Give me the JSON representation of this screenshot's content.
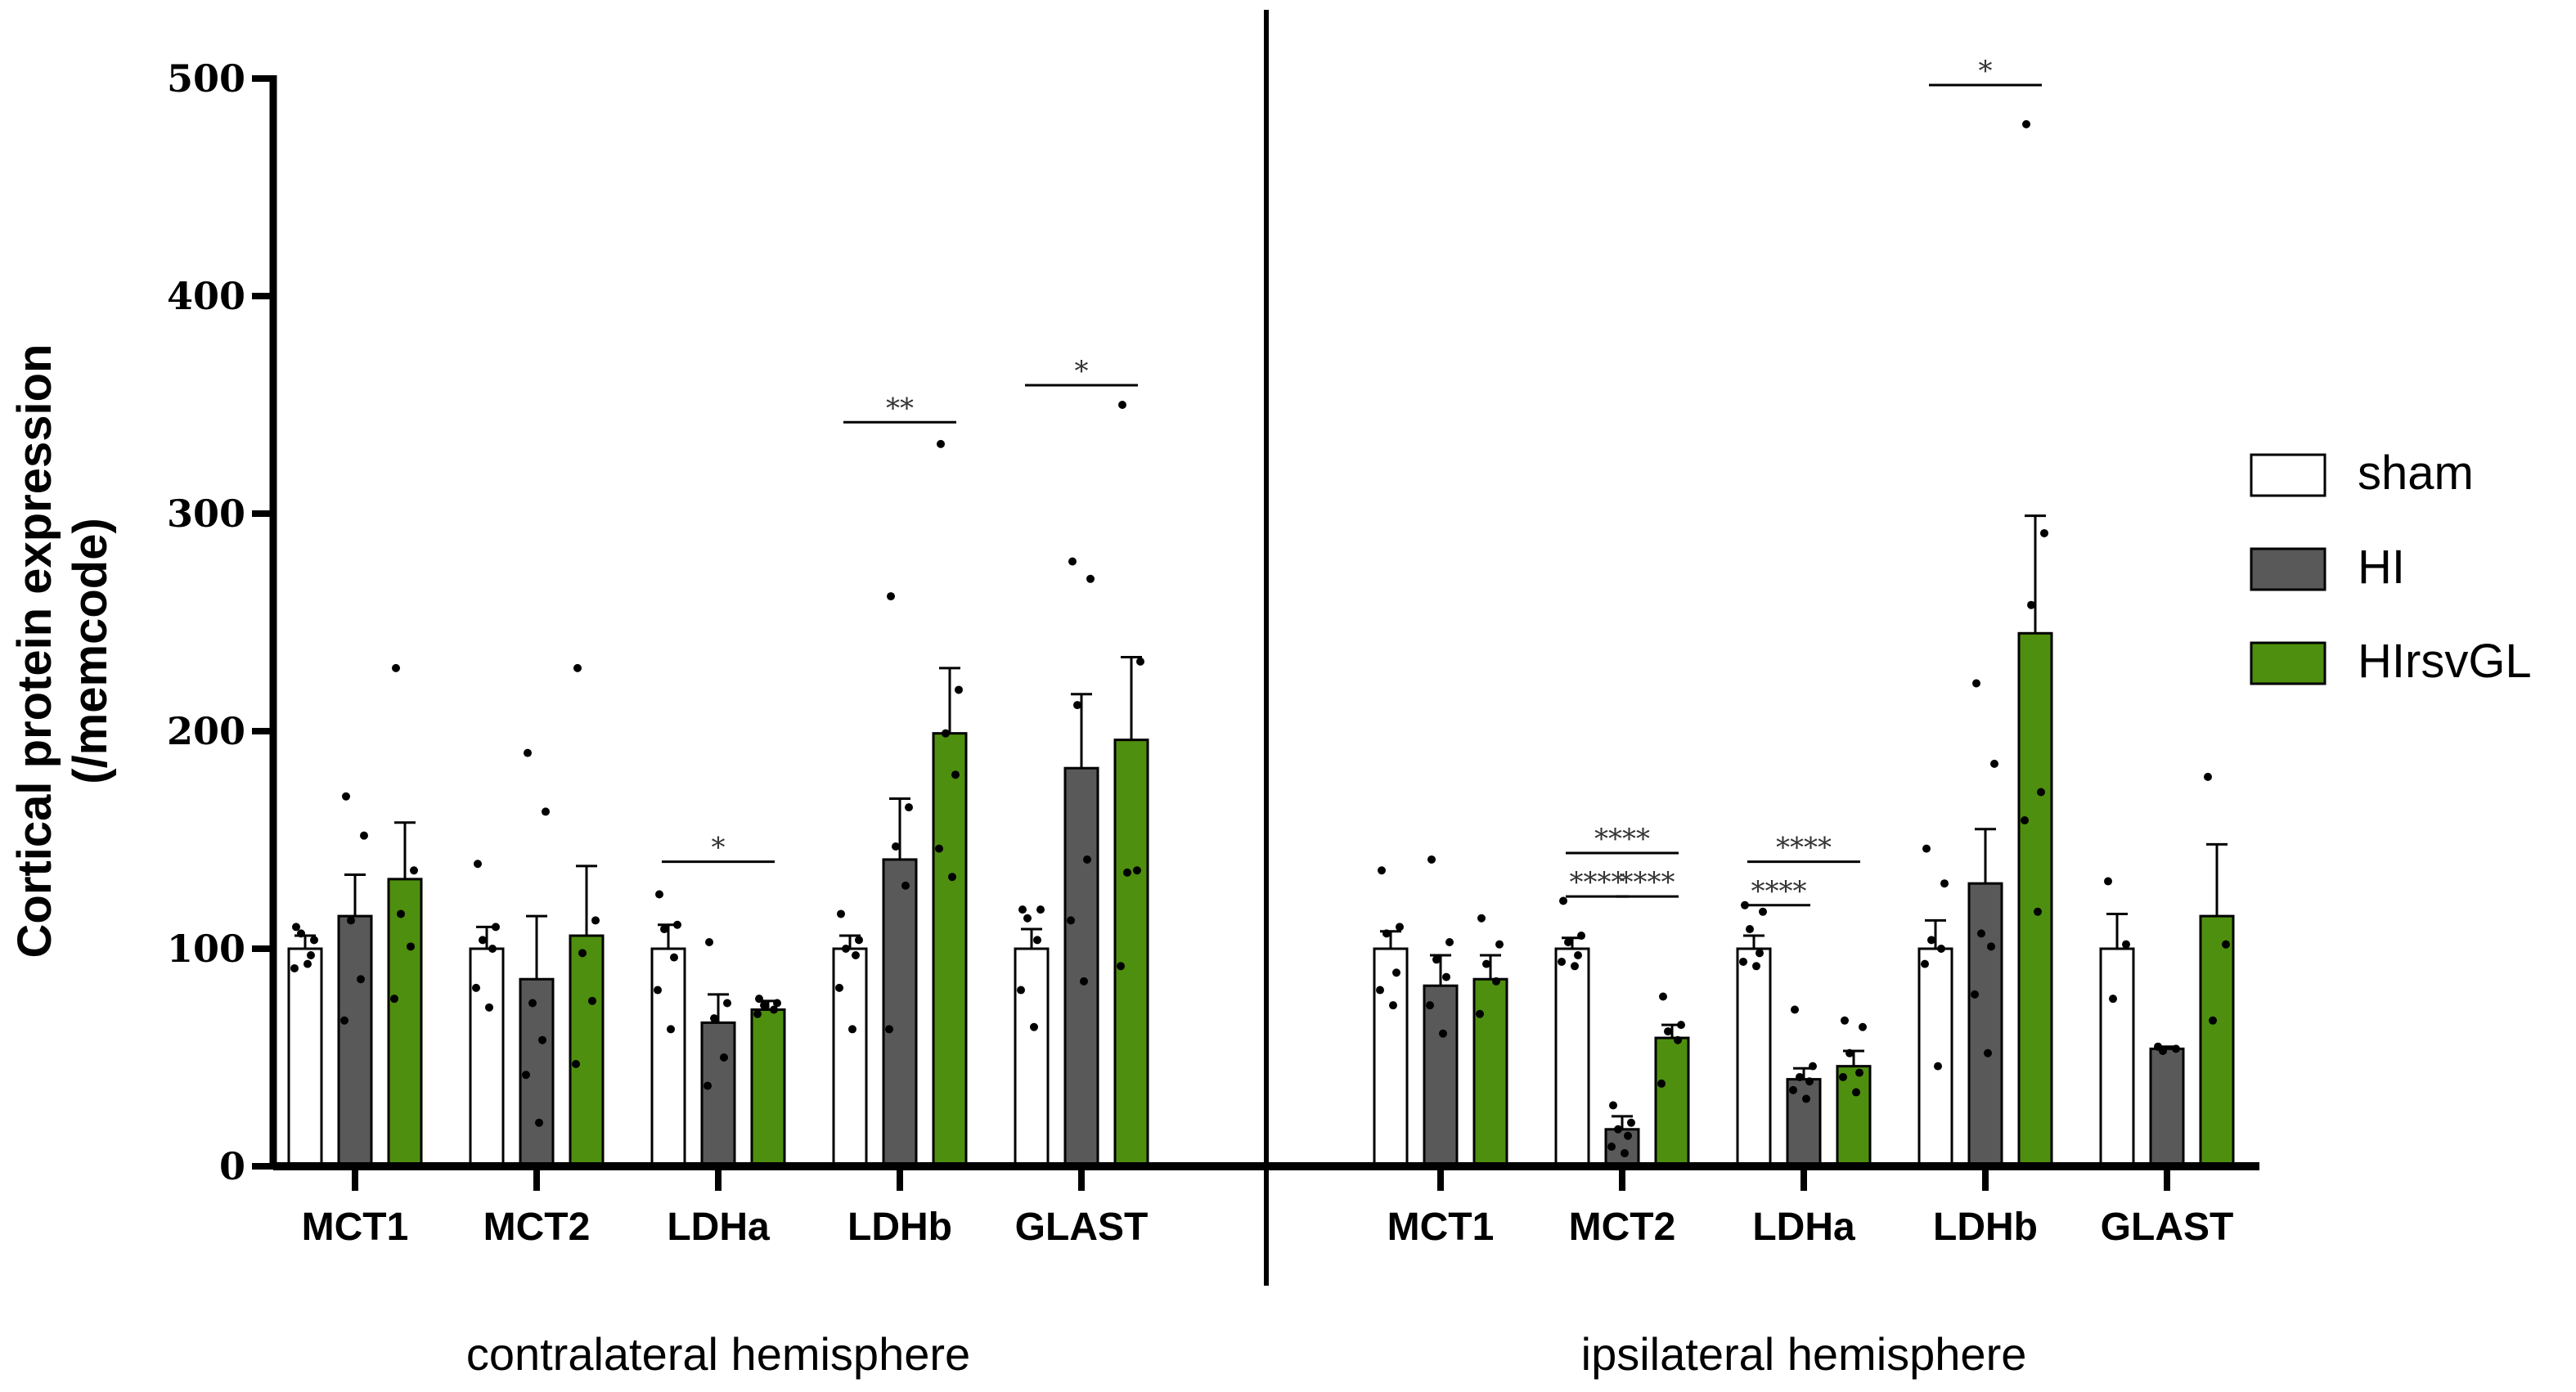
{
  "chart_data": {
    "type": "bar",
    "ylabel_line1": "Cortical protein expression",
    "ylabel_line2": "(/memcode)",
    "ylim": [
      0,
      500
    ],
    "yticks": [
      "0",
      "100",
      "200",
      "300",
      "400",
      "500"
    ],
    "legend": [
      {
        "name": "sham",
        "color": "#ffffff"
      },
      {
        "name": "HI",
        "color": "#595959"
      },
      {
        "name": "HIrsvGL",
        "color": "#4e8f0f"
      }
    ],
    "panels": [
      {
        "label": "contralateral hemisphere",
        "categories": [
          "MCT1",
          "MCT2",
          "LDHa",
          "LDHb",
          "GLAST"
        ],
        "series": [
          {
            "name": "sham",
            "values": [
              100,
              100,
              100,
              100,
              100
            ],
            "errors": [
              6,
              10,
              11,
              6,
              9
            ]
          },
          {
            "name": "HI",
            "values": [
              115,
              86,
              66,
              141,
              183
            ],
            "errors": [
              19,
              29,
              13,
              28,
              34
            ]
          },
          {
            "name": "HIrsvGL",
            "values": [
              132,
              106,
              72,
              199,
              196
            ],
            "errors": [
              26,
              32,
              4,
              30,
              38
            ]
          }
        ],
        "points": [
          [
            [
              110,
              104,
              107,
              97,
              91,
              93
            ],
            [
              170,
              152,
              113,
              86,
              67
            ],
            [
              229,
              136,
              116,
              101,
              77
            ]
          ],
          [
            [
              139,
              110,
              104,
              100,
              82,
              73
            ],
            [
              190,
              163,
              75,
              58,
              42,
              20
            ],
            [
              229,
              113,
              98,
              76,
              47
            ]
          ],
          [
            [
              125,
              111,
              109,
              96,
              81,
              63
            ],
            [
              103,
              75,
              68,
              50,
              37
            ],
            [
              77,
              75,
              74,
              72,
              70
            ]
          ],
          [
            [
              116,
              104,
              100,
              97,
              82,
              63
            ],
            [
              262,
              165,
              147,
              129,
              63
            ],
            [
              332,
              219,
              199,
              180,
              146,
              133
            ]
          ],
          [
            [
              118,
              118,
              114,
              104,
              81,
              64
            ],
            [
              278,
              270,
              212,
              141,
              113,
              85
            ],
            [
              350,
              232,
              135,
              136,
              92
            ]
          ]
        ],
        "significance": [
          {
            "label": "*",
            "category": "LDHa",
            "from": "sham",
            "to": "HIrsvGL",
            "y": 140
          },
          {
            "label": "**",
            "category": "LDHb",
            "from": "sham",
            "to": "HIrsvGL",
            "y": 342
          },
          {
            "label": "*",
            "category": "GLAST",
            "from": "sham",
            "to": "HIrsvGL",
            "y": 359
          }
        ]
      },
      {
        "label": "ipsilateral hemisphere",
        "categories": [
          "MCT1",
          "MCT2",
          "LDHa",
          "LDHb",
          "GLAST"
        ],
        "series": [
          {
            "name": "sham",
            "values": [
              100,
              100,
              100,
              100,
              100
            ],
            "errors": [
              8,
              5,
              6,
              13,
              16
            ]
          },
          {
            "name": "HI",
            "values": [
              83,
              17,
              40,
              130,
              54
            ],
            "errors": [
              14,
              6,
              5,
              25,
              1
            ]
          },
          {
            "name": "HIrsvGL",
            "values": [
              86,
              59,
              46,
              245,
              115
            ],
            "errors": [
              11,
              6,
              7,
              54,
              33
            ]
          }
        ],
        "points": [
          [
            [
              136,
              110,
              107,
              89,
              81,
              74
            ],
            [
              141,
              103,
              95,
              87,
              74,
              61
            ],
            [
              114,
              102,
              93,
              85,
              70
            ]
          ],
          [
            [
              122,
              106,
              103,
              97,
              94,
              92
            ],
            [
              28,
              20,
              17,
              14,
              9,
              6
            ],
            [
              78,
              65,
              62,
              58,
              38
            ]
          ],
          [
            [
              120,
              117,
              109,
              98,
              94,
              92
            ],
            [
              72,
              46,
              41,
              39,
              35,
              31
            ],
            [
              67,
              64,
              52,
              43,
              41,
              34
            ]
          ],
          [
            [
              146,
              130,
              104,
              100,
              93,
              46
            ],
            [
              222,
              185,
              107,
              101,
              79,
              52
            ],
            [
              479,
              291,
              258,
              172,
              159,
              117
            ]
          ],
          [
            [
              131,
              102,
              77
            ],
            [
              55,
              54,
              53
            ],
            [
              179,
              102,
              67
            ]
          ]
        ],
        "significance": [
          {
            "label": "****",
            "category": "MCT2",
            "from": "sham",
            "to": "HI",
            "y": 124
          },
          {
            "label": "****",
            "category": "MCT2",
            "from": "HI",
            "to": "HIrsvGL",
            "y": 124
          },
          {
            "label": "****",
            "category": "MCT2",
            "from": "sham",
            "to": "HIrsvGL",
            "y": 144
          },
          {
            "label": "****",
            "category": "LDHa",
            "from": "sham",
            "to": "HI",
            "y": 120
          },
          {
            "label": "****",
            "category": "LDHa",
            "from": "sham",
            "to": "HIrsvGL",
            "y": 140
          },
          {
            "label": "*",
            "category": "LDHb",
            "from": "sham",
            "to": "HIrsvGL",
            "y": 497
          }
        ]
      }
    ]
  }
}
